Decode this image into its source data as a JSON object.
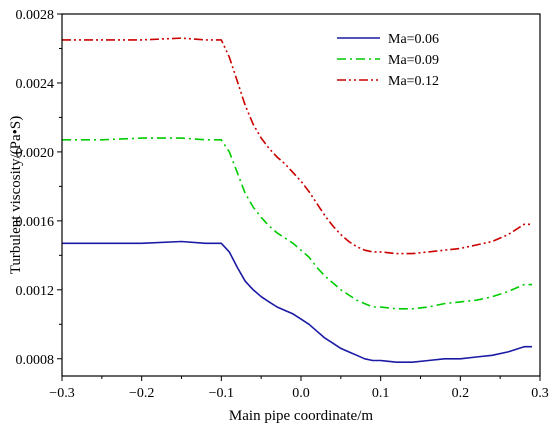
{
  "chart_data": {
    "type": "line",
    "xlabel": "Main pipe coordinate/m",
    "ylabel": "Turbulent viscosity/(Pa•S)",
    "xlim": [
      -0.3,
      0.3
    ],
    "ylim": [
      0.0007,
      0.0028
    ],
    "x_ticks": [
      -0.3,
      -0.2,
      -0.1,
      0.0,
      0.1,
      0.2,
      0.3
    ],
    "x_tick_labels": [
      "−0.3",
      "−0.2",
      "−0.1",
      "0.0",
      "0.1",
      "0.2",
      "0.3"
    ],
    "y_ticks": [
      0.0008,
      0.0012,
      0.0016,
      0.002,
      0.0024,
      0.0028
    ],
    "y_tick_labels": [
      "0.0008",
      "0.0012",
      "0.0016",
      "0.0020",
      "0.0024",
      "0.0028"
    ],
    "legend_position": "top-right",
    "grid": false,
    "series": [
      {
        "name": "Ma=0.06",
        "color": "#1a1aa6",
        "dash": "solid",
        "points": [
          [
            -0.3,
            0.00147
          ],
          [
            -0.25,
            0.00147
          ],
          [
            -0.2,
            0.00147
          ],
          [
            -0.15,
            0.00148
          ],
          [
            -0.12,
            0.00147
          ],
          [
            -0.1,
            0.00147
          ],
          [
            -0.09,
            0.00142
          ],
          [
            -0.08,
            0.00133
          ],
          [
            -0.07,
            0.00125
          ],
          [
            -0.06,
            0.0012
          ],
          [
            -0.05,
            0.00116
          ],
          [
            -0.04,
            0.00113
          ],
          [
            -0.03,
            0.0011
          ],
          [
            -0.02,
            0.00108
          ],
          [
            -0.01,
            0.00106
          ],
          [
            0.0,
            0.00103
          ],
          [
            0.01,
            0.001
          ],
          [
            0.02,
            0.00096
          ],
          [
            0.03,
            0.00092
          ],
          [
            0.04,
            0.00089
          ],
          [
            0.05,
            0.00086
          ],
          [
            0.06,
            0.00084
          ],
          [
            0.07,
            0.00082
          ],
          [
            0.08,
            0.0008
          ],
          [
            0.09,
            0.00079
          ],
          [
            0.1,
            0.00079
          ],
          [
            0.12,
            0.00078
          ],
          [
            0.14,
            0.00078
          ],
          [
            0.16,
            0.00079
          ],
          [
            0.18,
            0.0008
          ],
          [
            0.2,
            0.0008
          ],
          [
            0.22,
            0.00081
          ],
          [
            0.24,
            0.00082
          ],
          [
            0.26,
            0.00084
          ],
          [
            0.28,
            0.00087
          ],
          [
            0.29,
            0.00087
          ]
        ]
      },
      {
        "name": "Ma=0.09",
        "color": "#00cc00",
        "dash": "dashdot",
        "points": [
          [
            -0.3,
            0.00207
          ],
          [
            -0.25,
            0.00207
          ],
          [
            -0.2,
            0.00208
          ],
          [
            -0.15,
            0.00208
          ],
          [
            -0.12,
            0.00207
          ],
          [
            -0.1,
            0.00207
          ],
          [
            -0.09,
            0.002
          ],
          [
            -0.08,
            0.00188
          ],
          [
            -0.07,
            0.00176
          ],
          [
            -0.06,
            0.00168
          ],
          [
            -0.05,
            0.00162
          ],
          [
            -0.04,
            0.00157
          ],
          [
            -0.03,
            0.00153
          ],
          [
            -0.02,
            0.0015
          ],
          [
            -0.01,
            0.00147
          ],
          [
            0.0,
            0.00143
          ],
          [
            0.01,
            0.00139
          ],
          [
            0.02,
            0.00133
          ],
          [
            0.03,
            0.00128
          ],
          [
            0.04,
            0.00124
          ],
          [
            0.05,
            0.0012
          ],
          [
            0.06,
            0.00117
          ],
          [
            0.07,
            0.00114
          ],
          [
            0.08,
            0.00112
          ],
          [
            0.09,
            0.0011
          ],
          [
            0.1,
            0.0011
          ],
          [
            0.12,
            0.00109
          ],
          [
            0.14,
            0.00109
          ],
          [
            0.16,
            0.0011
          ],
          [
            0.18,
            0.00112
          ],
          [
            0.2,
            0.00113
          ],
          [
            0.22,
            0.00114
          ],
          [
            0.24,
            0.00116
          ],
          [
            0.26,
            0.00119
          ],
          [
            0.28,
            0.00123
          ],
          [
            0.29,
            0.00123
          ]
        ]
      },
      {
        "name": "Ma=0.12",
        "color": "#cc0000",
        "dash": "dashdotdot",
        "points": [
          [
            -0.3,
            0.00265
          ],
          [
            -0.25,
            0.00265
          ],
          [
            -0.2,
            0.00265
          ],
          [
            -0.15,
            0.00266
          ],
          [
            -0.12,
            0.00265
          ],
          [
            -0.1,
            0.00265
          ],
          [
            -0.09,
            0.00255
          ],
          [
            -0.08,
            0.00241
          ],
          [
            -0.07,
            0.00227
          ],
          [
            -0.06,
            0.00216
          ],
          [
            -0.05,
            0.00208
          ],
          [
            -0.04,
            0.00202
          ],
          [
            -0.03,
            0.00197
          ],
          [
            -0.02,
            0.00193
          ],
          [
            -0.01,
            0.00188
          ],
          [
            0.0,
            0.00183
          ],
          [
            0.01,
            0.00177
          ],
          [
            0.02,
            0.0017
          ],
          [
            0.03,
            0.00163
          ],
          [
            0.04,
            0.00157
          ],
          [
            0.05,
            0.00152
          ],
          [
            0.06,
            0.00148
          ],
          [
            0.07,
            0.00145
          ],
          [
            0.08,
            0.00143
          ],
          [
            0.09,
            0.00142
          ],
          [
            0.1,
            0.00142
          ],
          [
            0.12,
            0.00141
          ],
          [
            0.14,
            0.00141
          ],
          [
            0.16,
            0.00142
          ],
          [
            0.18,
            0.00143
          ],
          [
            0.2,
            0.00144
          ],
          [
            0.22,
            0.00146
          ],
          [
            0.24,
            0.00148
          ],
          [
            0.26,
            0.00152
          ],
          [
            0.28,
            0.00158
          ],
          [
            0.29,
            0.00158
          ]
        ]
      }
    ]
  }
}
